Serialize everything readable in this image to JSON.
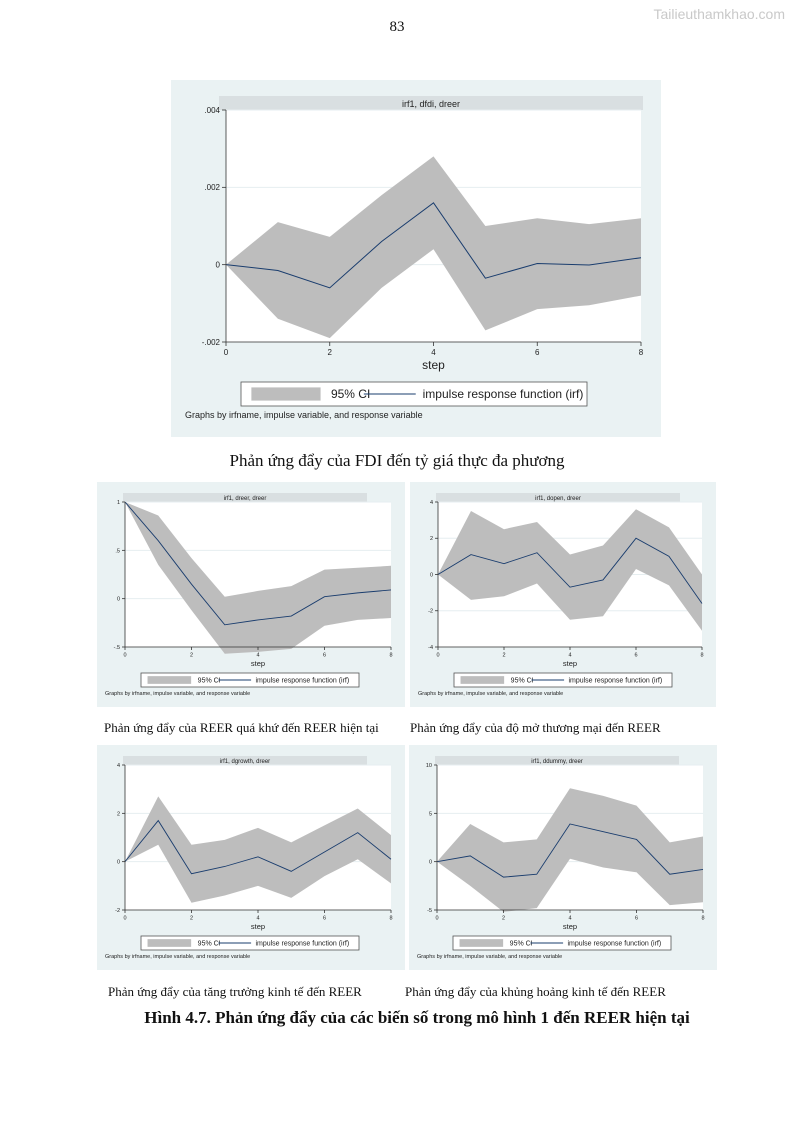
{
  "page": {
    "number": "83",
    "watermark": "Tailieuthamkhao.com"
  },
  "legend": {
    "ci_label": "95% CI",
    "irf_label": "impulse response function (irf)",
    "note": "Graphs by irfname, impulse variable, and response variable"
  },
  "captions": {
    "main": "Phản ứng đẩy của FDI đến tỷ giá thực đa phương",
    "reer": "Phản ứng đẩy của REER quá khứ đến REER hiện tại",
    "open": "Phản ứng đẩy của độ mở thương mại đến REER",
    "growth": "Phản ứng đẩy của tăng trưởng kinh tế đến REER",
    "dummy": "Phản ứng đẩy của khủng hoảng kinh tế đến REER"
  },
  "figure_title": "Hình 4.7. Phản ứng đẩy của các biến số trong mô hình 1 đến REER hiện tại",
  "colors": {
    "panel_bg": "#eaf2f3",
    "plot_bg": "#ffffff",
    "ci_fill": "#bdbdbd",
    "irf_line": "#1a3d6e",
    "header_bg": "#d9dfe1"
  },
  "chart_data": [
    {
      "type": "area",
      "title": "irf1, dfdi, dreer",
      "xlabel": "step",
      "ylabel": "",
      "x": [
        0,
        1,
        2,
        3,
        4,
        5,
        6,
        7,
        8
      ],
      "xlim": [
        0,
        8
      ],
      "ylim": [
        -0.002,
        0.004
      ],
      "xticks": [
        0,
        2,
        4,
        6,
        8
      ],
      "xtick_labels": [
        "0",
        "2",
        "4",
        "6",
        "8"
      ],
      "yticks": [
        -0.002,
        0,
        0.002,
        0.004
      ],
      "ytick_labels": [
        "-.002",
        "0",
        ".002",
        ".004"
      ],
      "series": [
        {
          "name": "impulse response function (irf)",
          "values": [
            0,
            -0.00015,
            -0.0006,
            0.0006,
            0.0016,
            -0.00035,
            3e-05,
            -1e-05,
            0.00018
          ]
        },
        {
          "name": "95% CI lower",
          "values": [
            0,
            -0.0014,
            -0.0019,
            -0.0006,
            0.0004,
            -0.0017,
            -0.00115,
            -0.00105,
            -0.0008
          ]
        },
        {
          "name": "95% CI upper",
          "values": [
            0,
            0.0011,
            0.00072,
            0.0018,
            0.0028,
            0.001,
            0.0012,
            0.00105,
            0.0012
          ]
        }
      ]
    },
    {
      "type": "area",
      "title": "irf1, dreer, dreer",
      "xlabel": "step",
      "ylabel": "",
      "x": [
        0,
        1,
        2,
        3,
        4,
        5,
        6,
        7,
        8
      ],
      "xlim": [
        0,
        8
      ],
      "ylim": [
        -0.5,
        1
      ],
      "xticks": [
        0,
        2,
        4,
        6,
        8
      ],
      "xtick_labels": [
        "0",
        "2",
        "4",
        "6",
        "8"
      ],
      "yticks": [
        -0.5,
        0,
        0.5,
        1
      ],
      "ytick_labels": [
        "-.5",
        "0",
        ".5",
        "1"
      ],
      "series": [
        {
          "name": "impulse response function (irf)",
          "values": [
            1,
            0.6,
            0.15,
            -0.27,
            -0.22,
            -0.18,
            0.02,
            0.06,
            0.09
          ]
        },
        {
          "name": "95% CI lower",
          "values": [
            1,
            0.35,
            -0.12,
            -0.57,
            -0.55,
            -0.52,
            -0.28,
            -0.22,
            -0.2
          ]
        },
        {
          "name": "95% CI upper",
          "values": [
            1,
            0.86,
            0.42,
            0.02,
            0.08,
            0.13,
            0.3,
            0.32,
            0.34
          ]
        }
      ]
    },
    {
      "type": "area",
      "title": "irf1, dopen, dreer",
      "xlabel": "step",
      "ylabel": "",
      "x": [
        0,
        1,
        2,
        3,
        4,
        5,
        6,
        7,
        8
      ],
      "xlim": [
        0,
        8
      ],
      "ylim": [
        -4,
        4
      ],
      "xticks": [
        0,
        2,
        4,
        6,
        8
      ],
      "xtick_labels": [
        "0",
        "2",
        "4",
        "6",
        "8"
      ],
      "yticks": [
        -4,
        -2,
        0,
        2,
        4
      ],
      "ytick_labels": [
        "-4",
        "-2",
        "0",
        "2",
        "4"
      ],
      "series": [
        {
          "name": "impulse response function (irf)",
          "values": [
            0,
            1.1,
            0.6,
            1.2,
            -0.7,
            -0.3,
            2.0,
            1.0,
            -1.6
          ]
        },
        {
          "name": "95% CI lower",
          "values": [
            0,
            -1.4,
            -1.2,
            -0.5,
            -2.5,
            -2.3,
            0.3,
            -0.6,
            -3.1
          ]
        },
        {
          "name": "95% CI upper",
          "values": [
            0,
            3.5,
            2.5,
            2.9,
            1.1,
            1.6,
            3.6,
            2.6,
            0
          ]
        }
      ]
    },
    {
      "type": "area",
      "title": "irf1, dgrowth, dreer",
      "xlabel": "step",
      "ylabel": "",
      "x": [
        0,
        1,
        2,
        3,
        4,
        5,
        6,
        7,
        8
      ],
      "xlim": [
        0,
        8
      ],
      "ylim": [
        -2,
        4
      ],
      "xticks": [
        0,
        2,
        4,
        6,
        8
      ],
      "xtick_labels": [
        "0",
        "2",
        "4",
        "6",
        "8"
      ],
      "yticks": [
        -2,
        0,
        2,
        4
      ],
      "ytick_labels": [
        "-2",
        "0",
        "2",
        "4"
      ],
      "series": [
        {
          "name": "impulse response function (irf)",
          "values": [
            0,
            1.7,
            -0.5,
            -0.2,
            0.2,
            -0.4,
            0.4,
            1.2,
            0.1
          ]
        },
        {
          "name": "95% CI lower",
          "values": [
            0,
            0.7,
            -1.7,
            -1.4,
            -1.0,
            -1.5,
            -0.6,
            0.1,
            -0.9
          ]
        },
        {
          "name": "95% CI upper",
          "values": [
            0,
            2.7,
            0.7,
            0.9,
            1.4,
            0.8,
            1.5,
            2.2,
            1.1
          ]
        }
      ]
    },
    {
      "type": "area",
      "title": "irf1, ddummy, dreer",
      "xlabel": "step",
      "ylabel": "",
      "x": [
        0,
        1,
        2,
        3,
        4,
        5,
        6,
        7,
        8
      ],
      "xlim": [
        0,
        8
      ],
      "ylim": [
        -5,
        10
      ],
      "xticks": [
        0,
        2,
        4,
        6,
        8
      ],
      "xtick_labels": [
        "0",
        "2",
        "4",
        "6",
        "8"
      ],
      "yticks": [
        -5,
        0,
        5,
        10
      ],
      "ytick_labels": [
        "-5",
        "0",
        "5",
        "10"
      ],
      "series": [
        {
          "name": "impulse response function (irf)",
          "values": [
            0,
            0.6,
            -1.6,
            -1.3,
            3.9,
            3.1,
            2.3,
            -1.3,
            -0.8
          ]
        },
        {
          "name": "95% CI lower",
          "values": [
            0,
            -2.5,
            -5.2,
            -4.8,
            0.3,
            -0.6,
            -1.1,
            -4.5,
            -4.2
          ]
        },
        {
          "name": "95% CI upper",
          "values": [
            0,
            3.9,
            2.0,
            2.3,
            7.6,
            6.8,
            5.8,
            2.0,
            2.6
          ]
        }
      ]
    }
  ]
}
